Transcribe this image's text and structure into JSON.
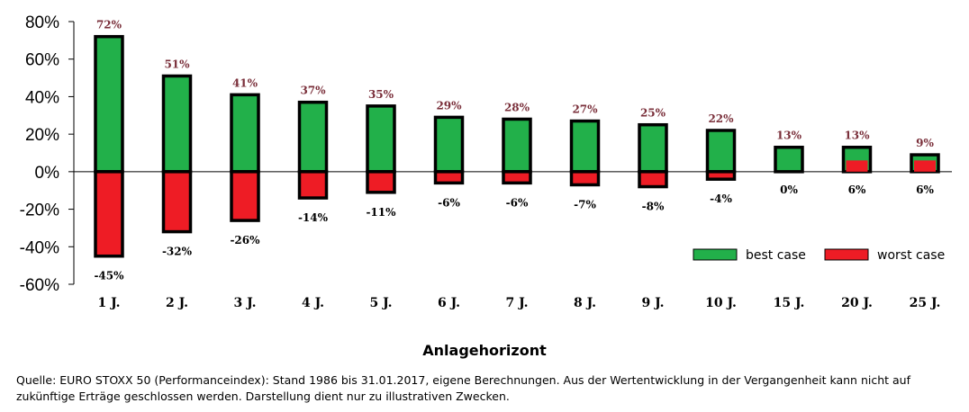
{
  "chart_data": {
    "type": "bar",
    "categories": [
      "1 J.",
      "2 J.",
      "3 J.",
      "4 J.",
      "5 J.",
      "6 J.",
      "7 J.",
      "8 J.",
      "9 J.",
      "10 J.",
      "15 J.",
      "20 J.",
      "25 J."
    ],
    "series": [
      {
        "name": "best case",
        "values": [
          72,
          51,
          41,
          37,
          35,
          29,
          28,
          27,
          25,
          22,
          13,
          13,
          9
        ],
        "color": "#22b04a"
      },
      {
        "name": "worst case",
        "values": [
          -45,
          -32,
          -26,
          -14,
          -11,
          -6,
          -6,
          -7,
          -8,
          -4,
          0,
          6,
          6
        ],
        "color": "#ee1c25"
      }
    ],
    "best_labels": [
      "72%",
      "51%",
      "41%",
      "37%",
      "35%",
      "29%",
      "28%",
      "27%",
      "25%",
      "22%",
      "13%",
      "13%",
      "9%"
    ],
    "worst_labels": [
      "-45%",
      "-32%",
      "-26%",
      "-14%",
      "-11%",
      "-6%",
      "-6%",
      "-7%",
      "-8%",
      "-4%",
      "0%",
      "6%",
      "6%"
    ],
    "y_ticks": [
      "80%",
      "60%",
      "40%",
      "20%",
      "0%",
      "-20%",
      "-40%",
      "-60%"
    ],
    "ylim": [
      -60,
      80
    ],
    "xlabel": "Anlagehorizont",
    "ylabel": "",
    "legend": {
      "position": "bottom-right",
      "best": "best case",
      "worst": "worst case"
    },
    "grid": false
  },
  "source_note": "Quelle: EURO STOXX 50 (Performanceindex): Stand 1986 bis 31.01.2017, eigene Berechnungen. Aus der Wertentwicklung in der Vergangenheit kann nicht auf zukünftige Erträge geschlossen werden. Darstellung dient nur zu illustrativen Zwecken."
}
